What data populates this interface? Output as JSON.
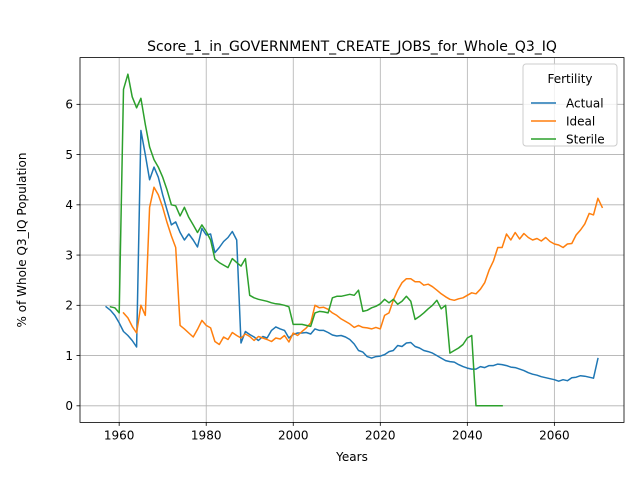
{
  "chart_data": {
    "type": "line",
    "title": "Score_1_in_GOVERNMENT_CREATE_JOBS_for_Whole_Q3_IQ",
    "xlabel": "Years",
    "ylabel": "% of Whole Q3_IQ Population",
    "xlim": [
      1951,
      2076
    ],
    "ylim": [
      -0.33,
      6.93
    ],
    "xticks": [
      1960,
      1980,
      2000,
      2020,
      2040,
      2060
    ],
    "yticks": [
      0,
      1,
      2,
      3,
      4,
      5,
      6
    ],
    "grid": true,
    "legend": {
      "title": "Fertility",
      "placement": "top-right"
    },
    "series": [
      {
        "name": "Actual",
        "color": "#1f77b4",
        "points": [
          [
            1957,
            1.97
          ],
          [
            1958,
            1.9
          ],
          [
            1959,
            1.8
          ],
          [
            1960,
            1.65
          ],
          [
            1961,
            1.48
          ],
          [
            1962,
            1.4
          ],
          [
            1963,
            1.3
          ],
          [
            1964,
            1.17
          ],
          [
            1965,
            5.48
          ],
          [
            1966,
            5.0
          ],
          [
            1967,
            4.5
          ],
          [
            1968,
            4.75
          ],
          [
            1969,
            4.55
          ],
          [
            1970,
            4.2
          ],
          [
            1971,
            3.9
          ],
          [
            1972,
            3.6
          ],
          [
            1973,
            3.66
          ],
          [
            1974,
            3.45
          ],
          [
            1975,
            3.3
          ],
          [
            1976,
            3.42
          ],
          [
            1977,
            3.3
          ],
          [
            1978,
            3.16
          ],
          [
            1979,
            3.53
          ],
          [
            1980,
            3.4
          ],
          [
            1981,
            3.42
          ],
          [
            1982,
            3.05
          ],
          [
            1983,
            3.15
          ],
          [
            1984,
            3.27
          ],
          [
            1985,
            3.35
          ],
          [
            1986,
            3.47
          ],
          [
            1987,
            3.3
          ],
          [
            1988,
            1.25
          ],
          [
            1989,
            1.48
          ],
          [
            1990,
            1.42
          ],
          [
            1991,
            1.37
          ],
          [
            1992,
            1.3
          ],
          [
            1993,
            1.38
          ],
          [
            1994,
            1.35
          ],
          [
            1995,
            1.5
          ],
          [
            1996,
            1.57
          ],
          [
            1997,
            1.53
          ],
          [
            1998,
            1.5
          ],
          [
            1999,
            1.35
          ],
          [
            2000,
            1.42
          ],
          [
            2001,
            1.45
          ],
          [
            2002,
            1.45
          ],
          [
            2003,
            1.46
          ],
          [
            2004,
            1.43
          ],
          [
            2005,
            1.53
          ],
          [
            2006,
            1.5
          ],
          [
            2007,
            1.5
          ],
          [
            2008,
            1.46
          ],
          [
            2009,
            1.41
          ],
          [
            2010,
            1.39
          ],
          [
            2011,
            1.4
          ],
          [
            2012,
            1.37
          ],
          [
            2013,
            1.32
          ],
          [
            2014,
            1.23
          ],
          [
            2015,
            1.1
          ],
          [
            2016,
            1.07
          ],
          [
            2017,
            0.98
          ],
          [
            2018,
            0.95
          ],
          [
            2019,
            0.98
          ],
          [
            2020,
            0.99
          ],
          [
            2021,
            1.02
          ],
          [
            2022,
            1.08
          ],
          [
            2023,
            1.1
          ],
          [
            2024,
            1.2
          ],
          [
            2025,
            1.18
          ],
          [
            2026,
            1.25
          ],
          [
            2027,
            1.26
          ],
          [
            2028,
            1.18
          ],
          [
            2029,
            1.15
          ],
          [
            2030,
            1.1
          ],
          [
            2031,
            1.08
          ],
          [
            2032,
            1.05
          ],
          [
            2033,
            1.0
          ],
          [
            2034,
            0.95
          ],
          [
            2035,
            0.9
          ],
          [
            2036,
            0.88
          ],
          [
            2037,
            0.87
          ],
          [
            2038,
            0.82
          ],
          [
            2039,
            0.78
          ],
          [
            2040,
            0.75
          ],
          [
            2041,
            0.73
          ],
          [
            2042,
            0.73
          ],
          [
            2043,
            0.78
          ],
          [
            2044,
            0.76
          ],
          [
            2045,
            0.8
          ],
          [
            2046,
            0.8
          ],
          [
            2047,
            0.83
          ],
          [
            2048,
            0.82
          ],
          [
            2049,
            0.8
          ],
          [
            2050,
            0.77
          ],
          [
            2051,
            0.76
          ],
          [
            2052,
            0.73
          ],
          [
            2053,
            0.7
          ],
          [
            2054,
            0.66
          ],
          [
            2055,
            0.63
          ],
          [
            2056,
            0.61
          ],
          [
            2057,
            0.58
          ],
          [
            2058,
            0.56
          ],
          [
            2059,
            0.54
          ],
          [
            2060,
            0.52
          ],
          [
            2061,
            0.49
          ],
          [
            2062,
            0.52
          ],
          [
            2063,
            0.5
          ],
          [
            2064,
            0.56
          ],
          [
            2065,
            0.57
          ],
          [
            2066,
            0.6
          ],
          [
            2067,
            0.59
          ],
          [
            2068,
            0.57
          ],
          [
            2069,
            0.55
          ],
          [
            2070,
            0.94
          ]
        ]
      },
      {
        "name": "Ideal",
        "color": "#ff7f0e",
        "points": [
          [
            1961,
            1.85
          ],
          [
            1962,
            1.75
          ],
          [
            1963,
            1.58
          ],
          [
            1964,
            1.45
          ],
          [
            1965,
            2.0
          ],
          [
            1966,
            1.8
          ],
          [
            1967,
            3.95
          ],
          [
            1968,
            4.35
          ],
          [
            1969,
            4.2
          ],
          [
            1970,
            3.95
          ],
          [
            1971,
            3.65
          ],
          [
            1972,
            3.38
          ],
          [
            1973,
            3.15
          ],
          [
            1974,
            1.6
          ],
          [
            1975,
            1.53
          ],
          [
            1976,
            1.45
          ],
          [
            1977,
            1.37
          ],
          [
            1978,
            1.52
          ],
          [
            1979,
            1.7
          ],
          [
            1980,
            1.6
          ],
          [
            1981,
            1.55
          ],
          [
            1982,
            1.28
          ],
          [
            1983,
            1.22
          ],
          [
            1984,
            1.37
          ],
          [
            1985,
            1.32
          ],
          [
            1986,
            1.46
          ],
          [
            1987,
            1.4
          ],
          [
            1988,
            1.35
          ],
          [
            1989,
            1.43
          ],
          [
            1990,
            1.38
          ],
          [
            1991,
            1.3
          ],
          [
            1992,
            1.38
          ],
          [
            1993,
            1.35
          ],
          [
            1994,
            1.32
          ],
          [
            1995,
            1.28
          ],
          [
            1996,
            1.35
          ],
          [
            1997,
            1.33
          ],
          [
            1998,
            1.4
          ],
          [
            1999,
            1.27
          ],
          [
            2000,
            1.45
          ],
          [
            2001,
            1.4
          ],
          [
            2002,
            1.48
          ],
          [
            2003,
            1.55
          ],
          [
            2004,
            1.65
          ],
          [
            2005,
            2.0
          ],
          [
            2006,
            1.95
          ],
          [
            2007,
            1.96
          ],
          [
            2008,
            1.92
          ],
          [
            2009,
            1.85
          ],
          [
            2010,
            1.8
          ],
          [
            2011,
            1.73
          ],
          [
            2012,
            1.68
          ],
          [
            2013,
            1.63
          ],
          [
            2014,
            1.56
          ],
          [
            2015,
            1.6
          ],
          [
            2016,
            1.56
          ],
          [
            2017,
            1.55
          ],
          [
            2018,
            1.53
          ],
          [
            2019,
            1.56
          ],
          [
            2020,
            1.53
          ],
          [
            2021,
            1.8
          ],
          [
            2022,
            1.85
          ],
          [
            2023,
            2.1
          ],
          [
            2024,
            2.3
          ],
          [
            2025,
            2.45
          ],
          [
            2026,
            2.53
          ],
          [
            2027,
            2.53
          ],
          [
            2028,
            2.47
          ],
          [
            2029,
            2.47
          ],
          [
            2030,
            2.4
          ],
          [
            2031,
            2.42
          ],
          [
            2032,
            2.37
          ],
          [
            2033,
            2.3
          ],
          [
            2034,
            2.23
          ],
          [
            2035,
            2.17
          ],
          [
            2036,
            2.12
          ],
          [
            2037,
            2.1
          ],
          [
            2038,
            2.13
          ],
          [
            2039,
            2.15
          ],
          [
            2040,
            2.2
          ],
          [
            2041,
            2.25
          ],
          [
            2042,
            2.23
          ],
          [
            2043,
            2.32
          ],
          [
            2044,
            2.45
          ],
          [
            2045,
            2.7
          ],
          [
            2046,
            2.88
          ],
          [
            2047,
            3.15
          ],
          [
            2048,
            3.15
          ],
          [
            2049,
            3.42
          ],
          [
            2050,
            3.3
          ],
          [
            2051,
            3.45
          ],
          [
            2052,
            3.32
          ],
          [
            2053,
            3.43
          ],
          [
            2054,
            3.35
          ],
          [
            2055,
            3.3
          ],
          [
            2056,
            3.33
          ],
          [
            2057,
            3.28
          ],
          [
            2058,
            3.35
          ],
          [
            2059,
            3.27
          ],
          [
            2060,
            3.22
          ],
          [
            2061,
            3.2
          ],
          [
            2062,
            3.15
          ],
          [
            2063,
            3.22
          ],
          [
            2064,
            3.23
          ],
          [
            2065,
            3.4
          ],
          [
            2066,
            3.5
          ],
          [
            2067,
            3.62
          ],
          [
            2068,
            3.83
          ],
          [
            2069,
            3.8
          ],
          [
            2070,
            4.13
          ],
          [
            2071,
            3.95
          ]
        ]
      },
      {
        "name": "Sterile",
        "color": "#2ca02c",
        "points": [
          [
            1958,
            1.97
          ],
          [
            1959,
            1.95
          ],
          [
            1960,
            1.85
          ],
          [
            1961,
            6.3
          ],
          [
            1962,
            6.6
          ],
          [
            1963,
            6.15
          ],
          [
            1964,
            5.93
          ],
          [
            1965,
            6.12
          ],
          [
            1966,
            5.6
          ],
          [
            1967,
            5.15
          ],
          [
            1968,
            4.9
          ],
          [
            1969,
            4.75
          ],
          [
            1970,
            4.55
          ],
          [
            1971,
            4.3
          ],
          [
            1972,
            4.0
          ],
          [
            1973,
            3.98
          ],
          [
            1974,
            3.78
          ],
          [
            1975,
            3.95
          ],
          [
            1976,
            3.75
          ],
          [
            1977,
            3.6
          ],
          [
            1978,
            3.45
          ],
          [
            1979,
            3.6
          ],
          [
            1980,
            3.47
          ],
          [
            1981,
            3.3
          ],
          [
            1982,
            2.92
          ],
          [
            1983,
            2.85
          ],
          [
            1984,
            2.8
          ],
          [
            1985,
            2.75
          ],
          [
            1986,
            2.93
          ],
          [
            1987,
            2.85
          ],
          [
            1988,
            2.78
          ],
          [
            1989,
            2.93
          ],
          [
            1990,
            2.2
          ],
          [
            1991,
            2.15
          ],
          [
            1992,
            2.12
          ],
          [
            1993,
            2.1
          ],
          [
            1994,
            2.08
          ],
          [
            1995,
            2.05
          ],
          [
            1996,
            2.03
          ],
          [
            1997,
            2.02
          ],
          [
            1998,
            2.0
          ],
          [
            1999,
            1.97
          ],
          [
            2000,
            1.62
          ],
          [
            2001,
            1.62
          ],
          [
            2002,
            1.62
          ],
          [
            2003,
            1.6
          ],
          [
            2004,
            1.58
          ],
          [
            2005,
            1.85
          ],
          [
            2006,
            1.88
          ],
          [
            2007,
            1.87
          ],
          [
            2008,
            1.85
          ],
          [
            2009,
            2.15
          ],
          [
            2010,
            2.18
          ],
          [
            2011,
            2.18
          ],
          [
            2012,
            2.2
          ],
          [
            2013,
            2.22
          ],
          [
            2014,
            2.2
          ],
          [
            2015,
            2.3
          ],
          [
            2016,
            1.88
          ],
          [
            2017,
            1.9
          ],
          [
            2018,
            1.95
          ],
          [
            2019,
            1.98
          ],
          [
            2020,
            2.03
          ],
          [
            2021,
            2.12
          ],
          [
            2022,
            2.05
          ],
          [
            2023,
            2.12
          ],
          [
            2024,
            2.02
          ],
          [
            2025,
            2.08
          ],
          [
            2026,
            2.18
          ],
          [
            2027,
            2.08
          ],
          [
            2028,
            1.72
          ],
          [
            2029,
            1.78
          ],
          [
            2030,
            1.85
          ],
          [
            2031,
            1.93
          ],
          [
            2032,
            2.0
          ],
          [
            2033,
            2.1
          ],
          [
            2034,
            1.93
          ],
          [
            2035,
            2.0
          ],
          [
            2036,
            1.05
          ],
          [
            2037,
            1.1
          ],
          [
            2038,
            1.15
          ],
          [
            2039,
            1.22
          ],
          [
            2040,
            1.35
          ],
          [
            2041,
            1.4
          ],
          [
            2042,
            0.0
          ],
          [
            2043,
            0.0
          ],
          [
            2044,
            0.0
          ],
          [
            2045,
            0.0
          ],
          [
            2046,
            0.0
          ],
          [
            2047,
            0.0
          ],
          [
            2048,
            0.0
          ]
        ]
      }
    ]
  }
}
